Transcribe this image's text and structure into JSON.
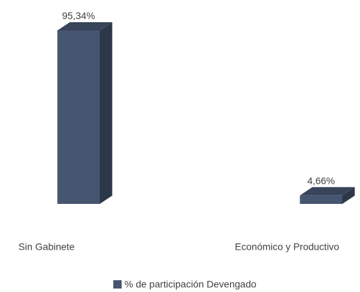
{
  "chart_data": {
    "type": "bar3d",
    "categories": [
      "Sin Gabinete",
      "Económico y Productivo"
    ],
    "series": [
      {
        "name": "% de participación Devengado",
        "color": "#465670",
        "values": [
          95.34,
          4.66
        ],
        "value_labels": [
          "95,34%",
          "4,66%"
        ]
      }
    ]
  }
}
